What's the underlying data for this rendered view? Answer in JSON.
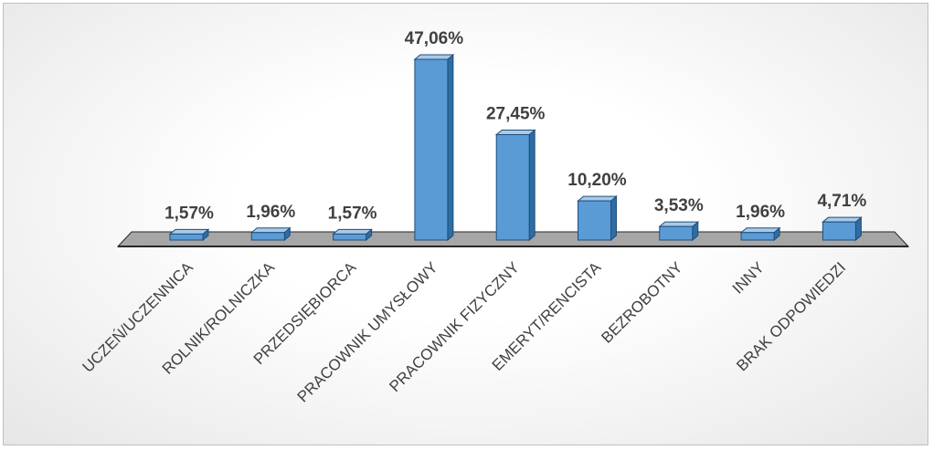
{
  "chart_data": {
    "type": "bar",
    "categories": [
      "UCZEŃ/UCZENNICA",
      "ROLNIK/ROLNICZKA",
      "PRZEDSIĘBIORCA",
      "PRACOWNIK UMYSŁOWY",
      "PRACOWNIK FIZYCZNY",
      "EMERYT/RENCISTA",
      "BEZROBOTNY",
      "INNY",
      "BRAK ODPOWIEDZI"
    ],
    "values": [
      1.57,
      1.96,
      1.57,
      47.06,
      27.45,
      10.2,
      3.53,
      1.96,
      4.71
    ],
    "value_labels": [
      "1,57%",
      "1,96%",
      "1,57%",
      "47,06%",
      "27,45%",
      "10,20%",
      "3,53%",
      "1,96%",
      "4,71%"
    ],
    "title": "",
    "xlabel": "",
    "ylabel": "",
    "ylim": [
      0,
      50
    ],
    "grid": false,
    "legend": "none",
    "style": "3d-column",
    "colors": {
      "bar_front": "#5b9bd5",
      "bar_side": "#2e6da4",
      "bar_top": "#a9c9ea",
      "bar_edge": "#1f4e79",
      "floor": "#a6a6a6",
      "floor_edge": "#262626",
      "label_text": "#404040"
    }
  }
}
